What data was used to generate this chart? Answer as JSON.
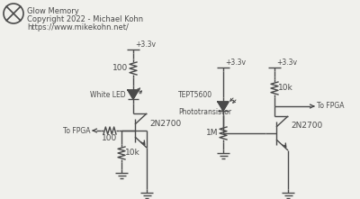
{
  "title_lines": [
    "Glow Memory",
    "Copyright 2022 - Michael Kohn",
    "https://www.mikekohn.net/"
  ],
  "bg_color": "#f0f0ec",
  "line_color": "#4a4a4a",
  "text_color": "#4a4a4a",
  "font_size": 6.5
}
